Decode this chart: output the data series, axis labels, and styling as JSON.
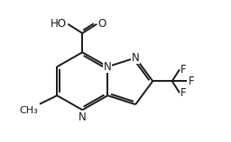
{
  "background_color": "#ffffff",
  "line_color": "#1a1a1a",
  "line_width": 1.4,
  "font_size": 8.5,
  "fig_width": 2.56,
  "fig_height": 1.58,
  "dpi": 100,
  "xlim": [
    0,
    10
  ],
  "ylim": [
    0,
    6.2
  ]
}
